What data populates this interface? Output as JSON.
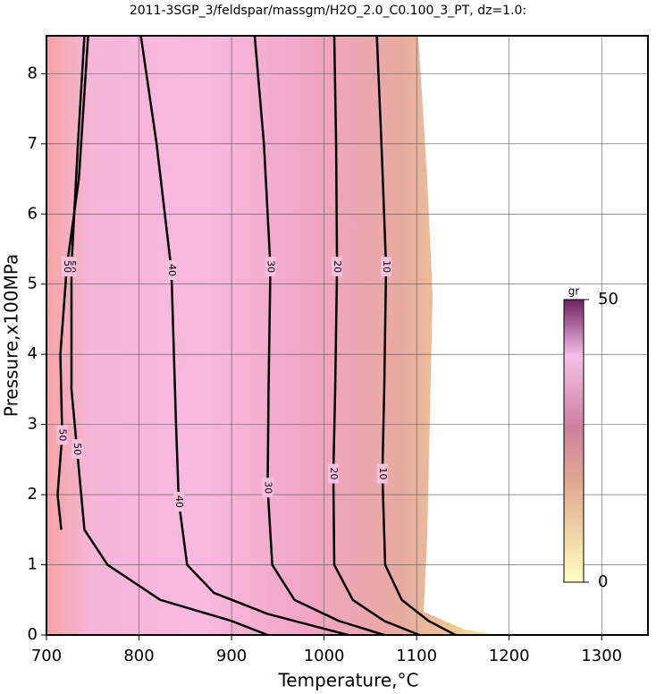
{
  "chart_data": {
    "type": "contour",
    "title": "2011-3SGP_3/feldspar/massgm/H2O_2.0_C0.100_3_PT, dz=1.0:",
    "x_label": "Temperature,°C",
    "y_label": "Pressure,x100MPa",
    "xlim": [
      700,
      1350
    ],
    "xticks": [
      700,
      800,
      900,
      1000,
      1100,
      1200,
      1300
    ],
    "ylim": [
      0,
      8.54
    ],
    "yticks": [
      0,
      1,
      2,
      3,
      4,
      5,
      6,
      7,
      8
    ],
    "grid": true,
    "contours": [
      {
        "level": 10,
        "x": [
          1057,
          1062,
          1067,
          1065,
          1063,
          1066,
          1084,
          1113,
          1142
        ],
        "y": [
          8.54,
          7,
          5.25,
          3.5,
          2.3,
          1,
          0.5,
          0.2,
          0
        ]
      },
      {
        "level": 20,
        "x": [
          1011,
          1013,
          1014,
          1012,
          1010,
          1011,
          1031,
          1065,
          1103
        ],
        "y": [
          8.54,
          7,
          5.25,
          3.5,
          2.3,
          1,
          0.5,
          0.2,
          0
        ]
      },
      {
        "level": 30,
        "x": [
          925,
          935,
          942,
          940,
          939,
          944,
          968,
          1016,
          1065
        ],
        "y": [
          8.54,
          7,
          5.25,
          3.5,
          2.1,
          1,
          0.5,
          0.2,
          0
        ]
      },
      {
        "level": 40,
        "x": [
          802,
          819,
          835,
          840,
          843,
          852,
          881,
          939,
          997,
          1026
        ],
        "y": [
          8.54,
          7,
          5.2,
          3,
          1.9,
          1,
          0.6,
          0.3,
          0.1,
          0
        ]
      },
      {
        "level": 50,
        "x": [
          741,
          734,
          727,
          727,
          733,
          741,
          766,
          823,
          900,
          939
        ],
        "y": [
          8.54,
          7,
          5.25,
          3.5,
          2.65,
          1.5,
          1,
          0.5,
          0.2,
          0
        ]
      },
      {
        "level": 50,
        "x": [
          745,
          735,
          722,
          715,
          717,
          712,
          716
        ],
        "y": [
          8.54,
          6.5,
          5.25,
          4,
          2.85,
          2,
          1.5
        ]
      }
    ],
    "colorbar": {
      "label": "gr",
      "zlim": [
        0,
        50
      ],
      "ticks": [
        0,
        50
      ]
    }
  }
}
